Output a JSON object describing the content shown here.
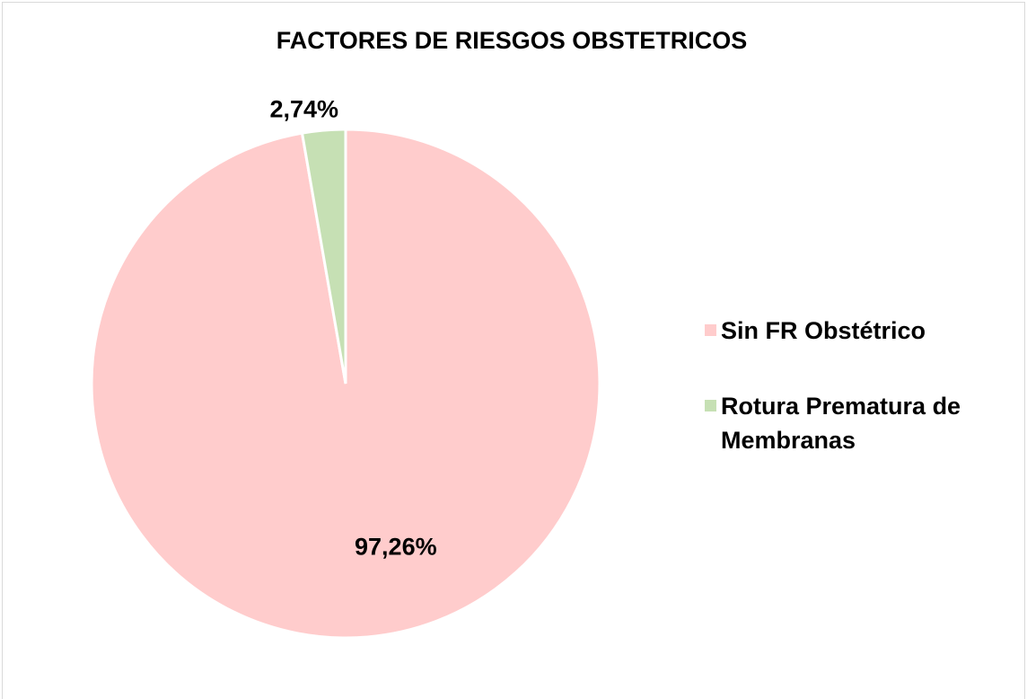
{
  "chart_data": {
    "type": "pie",
    "title": "FACTORES DE RIESGOS OBSTETRICOS",
    "categories": [
      "Sin FR Obstétrico",
      "Rotura Prematura de Membranas"
    ],
    "values": [
      97.26,
      2.74
    ],
    "value_labels": [
      "97,26%",
      "2,74%"
    ],
    "colors": [
      "#ffcccc",
      "#c6e0b4"
    ],
    "legend": "right"
  }
}
